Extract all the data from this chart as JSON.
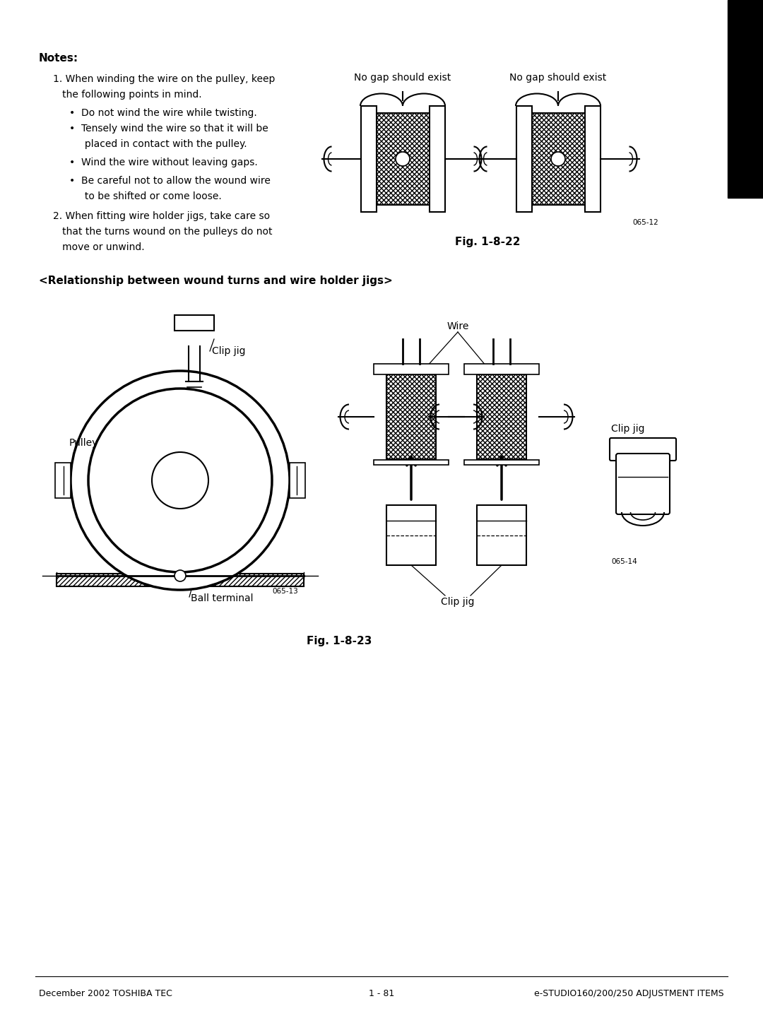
{
  "page_bg": "#ffffff",
  "text_color": "#000000",
  "notes_bold": "Notes:",
  "note1_line1": "1. When winding the wire on the pulley, keep",
  "note1_line2": "   the following points in mind.",
  "bullet1": "•  Do not wind the wire while twisting.",
  "bullet2": "•  Tensely wind the wire so that it will be",
  "bullet2b": "     placed in contact with the pulley.",
  "bullet3": "•  Wind the wire without leaving gaps.",
  "bullet4": "•  Be careful not to allow the wound wire",
  "bullet4b": "     to be shifted or come loose.",
  "note2_line1": "2. When fitting wire holder jigs, take care so",
  "note2_line2": "   that the turns wound on the pulleys do not",
  "note2_line3": "   move or unwind.",
  "section_title": "<Relationship between wound turns and wire holder jigs>",
  "fig122_label": "Fig. 1-8-22",
  "fig123_label": "Fig. 1-8-23",
  "no_gap1": "No gap should exist",
  "no_gap2": "No gap should exist",
  "label_wire": "Wire",
  "label_clip_jig1": "Clip jig",
  "label_clip_jig2": "Clip jig",
  "label_clip_jig3": "Clip jig",
  "label_pulley": "Pulley",
  "label_ball_terminal": "Ball terminal",
  "fig_num1": "065-12",
  "fig_num2": "065-13",
  "fig_num3": "065-14",
  "footer_left": "December 2002 TOSHIBA TEC",
  "footer_center": "1 - 81",
  "footer_right": "e-STUDIO160/200/250 ADJUSTMENT ITEMS",
  "black_bar_color": "#000000",
  "line_color": "#000000"
}
